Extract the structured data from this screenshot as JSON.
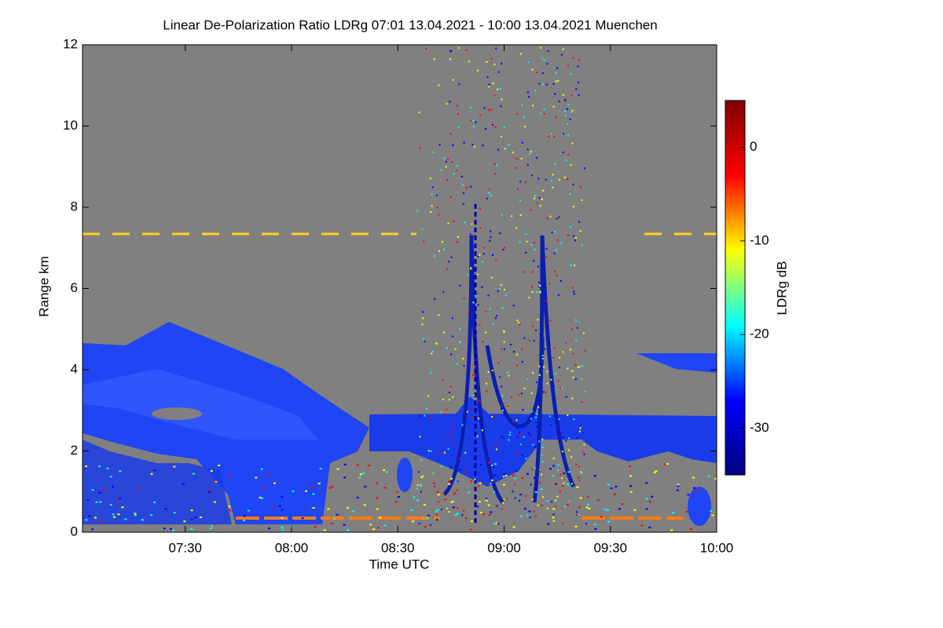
{
  "chart_data": {
    "type": "heatmap",
    "title": "Linear De-Polarization Ratio LDRg   07:01 13.04.2021 - 10:00 13.04.2021 Muenchen",
    "x_label": "Time UTC",
    "y_label": "Range km",
    "colorbar_label": "LDRg dB",
    "xlim": [
      "07:01",
      "10:00"
    ],
    "xticks": [
      "07:30",
      "08:00",
      "08:30",
      "09:00",
      "09:30",
      "10:00"
    ],
    "ylim": [
      0,
      12
    ],
    "yticks": [
      0,
      2,
      4,
      6,
      8,
      10,
      12
    ],
    "zlim": [
      -35,
      5
    ],
    "zticks": [
      0,
      -10,
      -20,
      -30
    ],
    "colormap": [
      "#00007f",
      "#0000ff",
      "#00ffff",
      "#ffff00",
      "#ff0000",
      "#7f0000"
    ],
    "background": "#808080"
  }
}
